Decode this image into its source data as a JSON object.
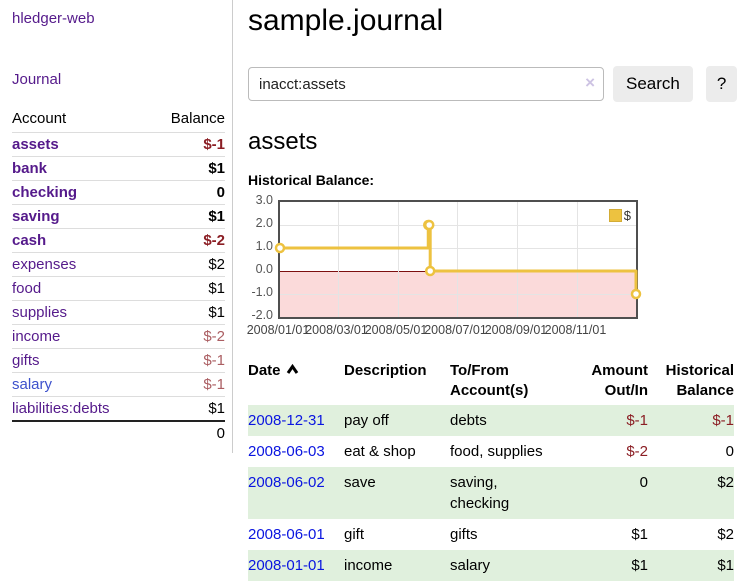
{
  "app": {
    "brand": "hledger-web",
    "nav": {
      "journal_label": "Journal"
    }
  },
  "sidebar": {
    "accounts_header": {
      "account": "Account",
      "balance": "Balance"
    },
    "accounts": [
      {
        "name": "assets",
        "balance": "$-1",
        "depth": 1,
        "bold": true,
        "negative": true
      },
      {
        "name": "bank",
        "balance": "$1",
        "depth": 2,
        "bold": true,
        "negative": false
      },
      {
        "name": "checking",
        "balance": "0",
        "depth": 3,
        "bold": true,
        "negative": false
      },
      {
        "name": "saving",
        "balance": "$1",
        "depth": 3,
        "bold": true,
        "negative": false
      },
      {
        "name": "cash",
        "balance": "$-2",
        "depth": 2,
        "bold": true,
        "negative": true
      },
      {
        "name": "expenses",
        "balance": "$2",
        "depth": 1,
        "bold": false,
        "negative": false
      },
      {
        "name": "food",
        "balance": "$1",
        "depth": 2,
        "bold": false,
        "negative": false
      },
      {
        "name": "supplies",
        "balance": "$1",
        "depth": 2,
        "bold": false,
        "negative": false
      },
      {
        "name": "income",
        "balance": "$-2",
        "depth": 1,
        "bold": false,
        "negative": true
      },
      {
        "name": "gifts",
        "balance": "$-1",
        "depth": 2,
        "bold": false,
        "negative": true
      },
      {
        "name": "salary",
        "balance": "$-1",
        "depth": 2,
        "bold": false,
        "negative": true,
        "link_blue": true
      },
      {
        "name": "liabilities:debts",
        "balance": "$1",
        "depth": 1,
        "bold": false,
        "negative": false
      }
    ],
    "total": "0"
  },
  "header": {
    "title": "sample.journal"
  },
  "search": {
    "value": "inacct:assets",
    "clear_icon": "×",
    "button_label": "Search",
    "help_label": "?"
  },
  "account_page": {
    "title": "assets",
    "chart_label": "Historical Balance:"
  },
  "chart_data": {
    "type": "line",
    "step": true,
    "title": "Historical Balance",
    "series": [
      {
        "name": "$",
        "color": "#edc240",
        "points": [
          [
            "2008-01-01",
            1
          ],
          [
            "2008-06-01",
            2
          ],
          [
            "2008-06-02",
            2
          ],
          [
            "2008-06-03",
            0
          ],
          [
            "2008-12-31",
            -1
          ]
        ]
      }
    ],
    "xlim": [
      "2008-01-01",
      "2008-12-31"
    ],
    "ylim": [
      -2.0,
      3.0
    ],
    "yticks": [
      "3.0",
      "2.0",
      "1.0",
      "0.0",
      "-1.0",
      "-2.0"
    ],
    "xticks": [
      "2008/01/01",
      "2008/03/01",
      "2008/05/01",
      "2008/07/01",
      "2008/09/01",
      "2008/11/01"
    ],
    "legend_position": "top-right",
    "grid": true,
    "negative_region_color": "#fbdada",
    "zero_line_color": "#7d0f0f"
  },
  "register": {
    "columns": [
      {
        "label": "Date",
        "sort": "ascending"
      },
      {
        "label": "Description"
      },
      {
        "label": "To/From Account(s)"
      },
      {
        "label": "Amount Out/In"
      },
      {
        "label": "Historical Balance"
      }
    ],
    "rows": [
      {
        "date": "2008-12-31",
        "description": "pay off",
        "accounts": "debts",
        "amount": "$-1",
        "balance": "$-1",
        "amount_negative": true,
        "balance_negative": true
      },
      {
        "date": "2008-06-03",
        "description": "eat & shop",
        "accounts": "food, supplies",
        "amount": "$-2",
        "balance": "0",
        "amount_negative": true,
        "balance_negative": false
      },
      {
        "date": "2008-06-02",
        "description": "save",
        "accounts": "saving, checking",
        "amount": "0",
        "balance": "$2",
        "amount_negative": false,
        "balance_negative": false
      },
      {
        "date": "2008-06-01",
        "description": "gift",
        "accounts": "gifts",
        "amount": "$1",
        "balance": "$2",
        "amount_negative": false,
        "balance_negative": false
      },
      {
        "date": "2008-01-01",
        "description": "income",
        "accounts": "salary",
        "amount": "$1",
        "balance": "$1",
        "amount_negative": false,
        "balance_negative": false
      }
    ]
  },
  "colors": {
    "link_purple": "#551a8b",
    "link_blue": "#0a15e0",
    "negative_red": "#8b1e24",
    "row_green": "#e0f0dd",
    "series_gold": "#edc240"
  }
}
